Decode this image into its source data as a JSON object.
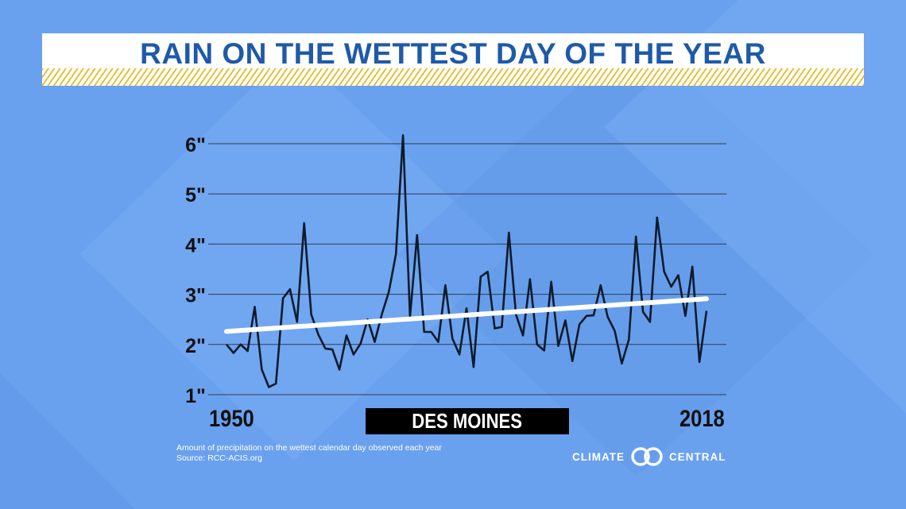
{
  "title": "RAIN ON THE WETTEST DAY OF THE YEAR",
  "location_label": "DES MOINES",
  "caption_line1": "Amount of precipitation on the wettest calendar day observed each year",
  "caption_line2": "Source: RCC-ACIS.org",
  "logo": {
    "left": "CLIMATE",
    "right": "CENTRAL",
    "icon": "interlocking-rings-icon"
  },
  "colors": {
    "background": "#6aa1ef",
    "title_text": "#1f5aa8",
    "stripe": "#e8bf3a",
    "line": "#0d1b2a",
    "trend": "#ffffff",
    "grid": "#2c3e55"
  },
  "chart_data": {
    "type": "line",
    "title": "RAIN ON THE WETTEST DAY OF THE YEAR",
    "xlabel": "",
    "ylabel": "",
    "x_tick_labels": [
      "1950",
      "2018"
    ],
    "y_tick_labels": [
      "1\"",
      "2\"",
      "3\"",
      "4\"",
      "5\"",
      "6\""
    ],
    "xlim": [
      1950,
      2018
    ],
    "ylim": [
      1,
      6.3
    ],
    "grid": true,
    "series": [
      {
        "x": [
          1950,
          1951,
          1952,
          1953,
          1954,
          1955,
          1956,
          1957,
          1958,
          1959,
          1960,
          1961,
          1962,
          1963,
          1964,
          1965,
          1966,
          1967,
          1968,
          1969,
          1970,
          1971,
          1972,
          1973,
          1974,
          1975,
          1976,
          1977,
          1978,
          1979,
          1980,
          1981,
          1982,
          1983,
          1984,
          1985,
          1986,
          1987,
          1988,
          1989,
          1990,
          1991,
          1992,
          1993,
          1994,
          1995,
          1996,
          1997,
          1998,
          1999,
          2000,
          2001,
          2002,
          2003,
          2004,
          2005,
          2006,
          2007,
          2008,
          2009,
          2010,
          2011,
          2012,
          2013,
          2014,
          2015,
          2016,
          2017,
          2018
        ],
        "values": [
          2.0,
          1.83,
          2.0,
          1.87,
          2.75,
          1.5,
          1.15,
          1.22,
          2.92,
          3.1,
          2.45,
          4.42,
          2.6,
          2.2,
          1.92,
          1.9,
          1.5,
          2.18,
          1.8,
          2.02,
          2.5,
          2.05,
          2.6,
          3.05,
          3.8,
          6.17,
          2.55,
          4.18,
          2.25,
          2.25,
          2.05,
          3.18,
          2.12,
          1.8,
          2.72,
          1.55,
          3.35,
          3.45,
          2.32,
          2.35,
          4.23,
          2.6,
          2.18,
          3.3,
          2.0,
          1.88,
          3.25,
          1.97,
          2.48,
          1.67,
          2.4,
          2.57,
          2.58,
          3.18,
          2.55,
          2.27,
          1.62,
          2.1,
          4.15,
          2.65,
          2.45,
          4.53,
          3.45,
          3.15,
          3.38,
          2.57,
          3.55,
          1.65,
          2.67
        ]
      }
    ],
    "trend_line": {
      "start": [
        1950,
        2.26
      ],
      "end": [
        2018,
        2.91
      ]
    }
  }
}
